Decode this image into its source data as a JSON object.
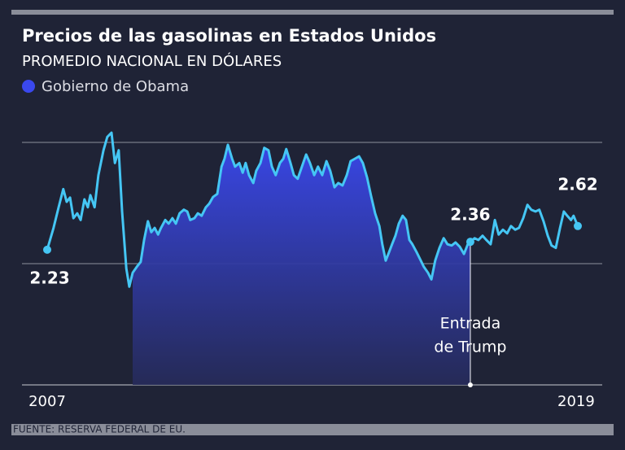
{
  "chart_data": {
    "type": "line",
    "title": "Precios de las gasolinas en Estados Unidos",
    "subtitle": "PROMEDIO NACIONAL EN DÓLARES",
    "source": "FUENTE: RESERVA FEDERAL DE EU.",
    "x": [
      2007.0,
      2007.15,
      2007.27,
      2007.38,
      2007.46,
      2007.54,
      2007.62,
      2007.71,
      2007.79,
      2007.88,
      2007.96,
      2008.02,
      2008.12,
      2008.21,
      2008.33,
      2008.42,
      2008.52,
      2008.6,
      2008.69,
      2008.77,
      2008.87,
      2008.94,
      2009.02,
      2009.12,
      2009.21,
      2009.29,
      2009.38,
      2009.46,
      2009.54,
      2009.62,
      2009.69,
      2009.79,
      2009.87,
      2009.96,
      2010.04,
      2010.13,
      2010.23,
      2010.31,
      2010.38,
      2010.48,
      2010.56,
      2010.65,
      2010.75,
      2010.83,
      2010.92,
      2011.02,
      2011.12,
      2011.19,
      2011.27,
      2011.37,
      2011.44,
      2011.54,
      2011.62,
      2011.69,
      2011.77,
      2011.87,
      2011.94,
      2012.04,
      2012.13,
      2012.23,
      2012.31,
      2012.4,
      2012.5,
      2012.58,
      2012.65,
      2012.75,
      2012.83,
      2012.92,
      2013.02,
      2013.12,
      2013.21,
      2013.31,
      2013.4,
      2013.5,
      2013.6,
      2013.69,
      2013.79,
      2013.88,
      2013.98,
      2014.08,
      2014.17,
      2014.27,
      2014.37,
      2014.46,
      2014.56,
      2014.65,
      2014.75,
      2014.85,
      2014.92,
      2015.0,
      2015.08,
      2015.15,
      2015.23,
      2015.31,
      2015.4,
      2015.48,
      2015.56,
      2015.63,
      2015.73,
      2015.83,
      2015.9,
      2016.0,
      2016.08,
      2016.17,
      2016.27,
      2016.37,
      2016.46,
      2016.56,
      2016.65,
      2016.75,
      2016.85,
      2016.94,
      2017.0,
      2017.1,
      2017.19,
      2017.29,
      2017.38,
      2017.48,
      2017.58,
      2017.67,
      2017.77,
      2017.87,
      2017.96,
      2018.06,
      2018.15,
      2018.25,
      2018.35,
      2018.44,
      2018.54,
      2018.63,
      2018.73,
      2018.83,
      2018.92,
      2019.02,
      2019.12,
      2019.21,
      2019.29,
      2019.38,
      2019.44,
      2019.54
    ],
    "series": [
      {
        "color": "#45c6f4",
        "values": [
          2.23,
          2.59,
          2.93,
          3.23,
          3.02,
          3.09,
          2.75,
          2.83,
          2.72,
          3.06,
          2.93,
          3.13,
          2.93,
          3.46,
          3.87,
          4.09,
          4.16,
          3.66,
          3.87,
          2.86,
          1.92,
          1.62,
          1.85,
          1.95,
          2.03,
          2.39,
          2.7,
          2.52,
          2.59,
          2.48,
          2.59,
          2.72,
          2.66,
          2.75,
          2.66,
          2.83,
          2.89,
          2.86,
          2.72,
          2.75,
          2.83,
          2.79,
          2.93,
          2.99,
          3.1,
          3.15,
          3.6,
          3.73,
          3.96,
          3.73,
          3.6,
          3.66,
          3.5,
          3.66,
          3.46,
          3.33,
          3.53,
          3.66,
          3.91,
          3.87,
          3.6,
          3.46,
          3.66,
          3.73,
          3.89,
          3.66,
          3.46,
          3.4,
          3.6,
          3.8,
          3.66,
          3.46,
          3.6,
          3.46,
          3.69,
          3.53,
          3.26,
          3.33,
          3.29,
          3.46,
          3.69,
          3.73,
          3.77,
          3.66,
          3.42,
          3.13,
          2.83,
          2.62,
          2.32,
          2.05,
          2.19,
          2.32,
          2.46,
          2.66,
          2.79,
          2.72,
          2.39,
          2.32,
          2.19,
          2.05,
          1.95,
          1.85,
          1.74,
          2.05,
          2.26,
          2.42,
          2.32,
          2.3,
          2.35,
          2.28,
          2.16,
          2.32,
          2.36,
          2.42,
          2.39,
          2.46,
          2.39,
          2.32,
          2.72,
          2.48,
          2.56,
          2.5,
          2.62,
          2.56,
          2.59,
          2.75,
          2.97,
          2.89,
          2.86,
          2.89,
          2.7,
          2.46,
          2.3,
          2.26,
          2.59,
          2.86,
          2.79,
          2.72,
          2.79,
          2.62
        ],
        "value_labels": [
          "2.23",
          null,
          null,
          null,
          null,
          null,
          null,
          null,
          null,
          null,
          null,
          null,
          null,
          null,
          null,
          null,
          null,
          null,
          null,
          null,
          null,
          null,
          null,
          null,
          null,
          null,
          null,
          null,
          null,
          null,
          null,
          null,
          null,
          null,
          null,
          null,
          null,
          null,
          null,
          null,
          null,
          null,
          null,
          null,
          null,
          null,
          null,
          null,
          null,
          null,
          null,
          null,
          null,
          null,
          null,
          null,
          null,
          null,
          null,
          null,
          null,
          null,
          null,
          null,
          null,
          null,
          null,
          null,
          null,
          null,
          null,
          null,
          null,
          null,
          null,
          null,
          null,
          null,
          null,
          null,
          null,
          null,
          null,
          null,
          null,
          null,
          null,
          null,
          null,
          null,
          null,
          null,
          null,
          null,
          null,
          null,
          null,
          null,
          null,
          null,
          null,
          null,
          null,
          null,
          null,
          null,
          null,
          null,
          null,
          null,
          null,
          null,
          "2.36",
          null,
          null,
          null,
          null,
          null,
          null,
          null,
          null,
          null,
          null,
          null,
          null,
          null,
          null,
          null,
          null,
          null,
          null,
          null,
          null,
          null,
          null,
          null,
          null,
          null,
          null,
          "2.62"
        ]
      }
    ],
    "shade": {
      "name": "Gobierno de Obama",
      "from": 2009.02,
      "to": 2017.0,
      "color": "#3a48ee"
    },
    "annotation": {
      "lines": [
        "Entrada",
        "de Trump"
      ]
    },
    "xlim": [
      2007,
      2019.54
    ],
    "xticks": [
      2007,
      2019
    ],
    "ylim": [
      0,
      4
    ],
    "yticks": [
      0,
      2,
      4
    ],
    "grid": true
  }
}
